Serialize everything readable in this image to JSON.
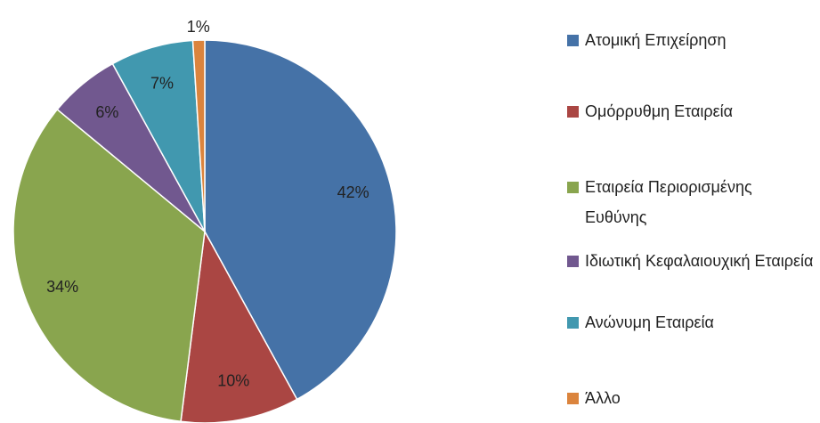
{
  "chart_data": {
    "type": "pie",
    "categories": [
      "Ατομική Επιχείρηση",
      "Ομόρρυθμη Εταιρεία",
      "Εταιρεία Περιορισμένης Ευθύνης",
      "Ιδιωτική Κεφαλαιουχική Εταιρεία",
      "Ανώνυμη Εταιρεία",
      "Άλλο"
    ],
    "values": [
      42,
      10,
      34,
      6,
      7,
      1
    ],
    "value_labels": [
      "42%",
      "10%",
      "34%",
      "6%",
      "7%",
      "1%"
    ],
    "colors": [
      "#4572a7",
      "#aa4643",
      "#89a54e",
      "#71588f",
      "#4198af",
      "#db843d"
    ],
    "legend": "right"
  }
}
